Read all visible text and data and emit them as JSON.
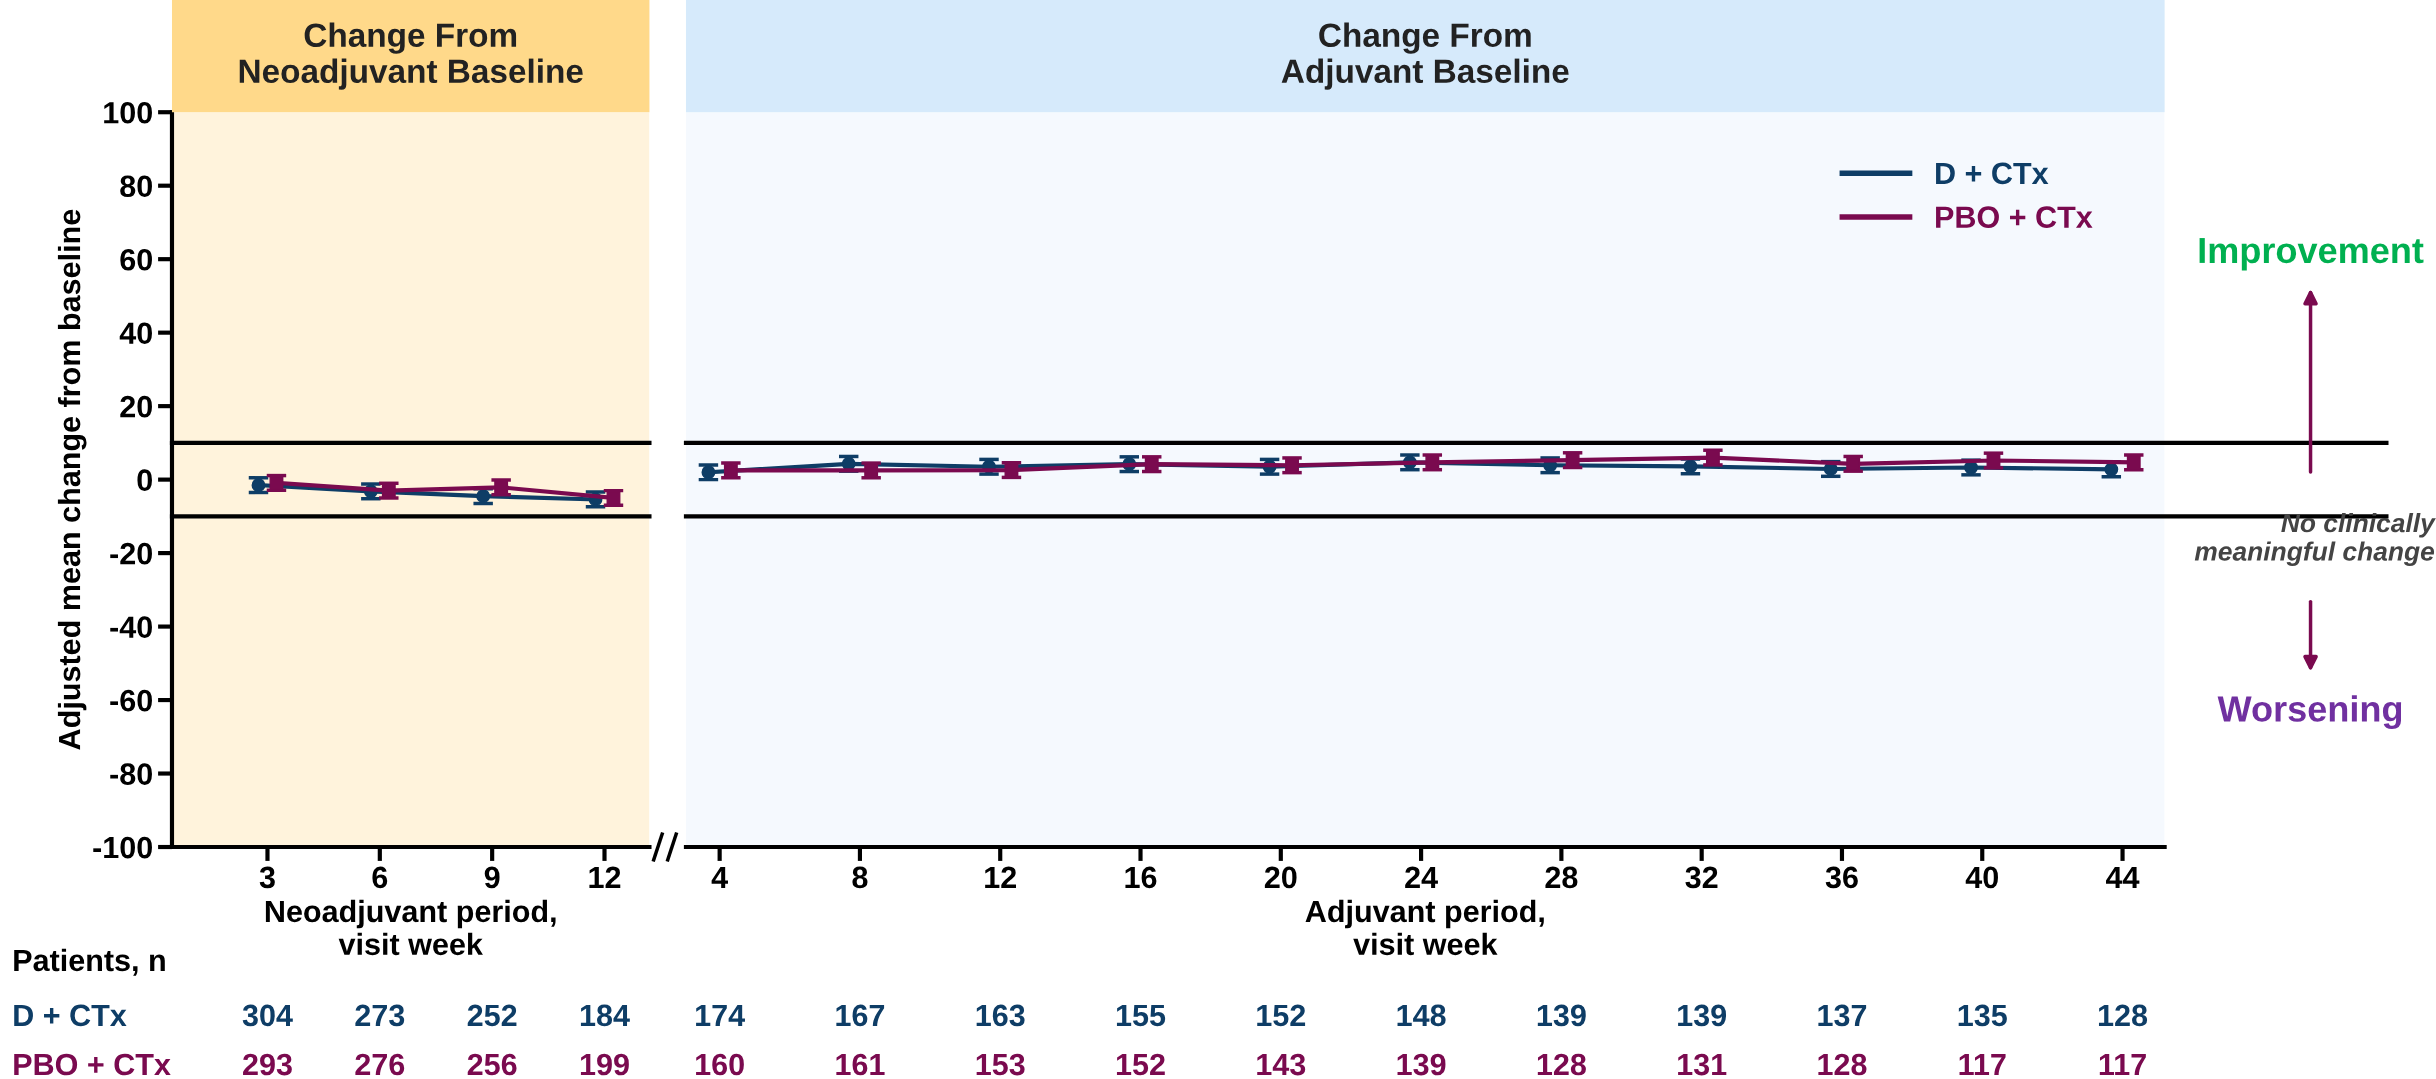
{
  "chart_data": [
    {
      "type": "line",
      "title": "Change From\nNeoadjuvant Baseline",
      "xlabel": "Neoadjuvant period,\nvisit week",
      "ylabel": "Adjusted mean change from baseline",
      "categories": [
        "3",
        "6",
        "9",
        "12"
      ],
      "series": [
        {
          "name": "D + CTx",
          "color": "#0e3d66",
          "marker": "circle",
          "values": [
            -1.5,
            -3.2,
            -4.5,
            -5.4
          ],
          "errors": [
            2,
            2,
            2,
            2
          ]
        },
        {
          "name": "PBO + CTx",
          "color": "#7a0a4f",
          "marker": "square",
          "values": [
            -0.9,
            -3.0,
            -2.1,
            -5.0
          ],
          "errors": [
            2,
            2,
            2,
            2
          ]
        }
      ],
      "ylim": [
        -100,
        100
      ],
      "yticks": [
        -100,
        -80,
        -60,
        -40,
        -20,
        0,
        20,
        40,
        60,
        80,
        100
      ],
      "ref_lines": [
        {
          "axis": "y",
          "value": 10,
          "label": null,
          "color": "#000000"
        },
        {
          "axis": "y",
          "value": -10,
          "label": null,
          "color": "#000000"
        }
      ],
      "bands": [
        {
          "axis": "y",
          "from": -100,
          "to": 100,
          "label": null,
          "color": "#fff3dc"
        }
      ],
      "annotations": [
        "Patients, n",
        "304",
        "273",
        "252",
        "184",
        "293",
        "276",
        "256",
        "199"
      ],
      "legend": "bottom left",
      "grid": false
    },
    {
      "type": "line",
      "title": "Change From\nAdjuvant Baseline",
      "xlabel": "Adjuvant period,\nvisit week",
      "categories": [
        "4",
        "8",
        "12",
        "16",
        "20",
        "24",
        "28",
        "32",
        "36",
        "40",
        "44"
      ],
      "series": [
        {
          "name": "D + CTx",
          "color": "#0e3d66",
          "marker": "circle",
          "values": [
            2.0,
            4.3,
            3.5,
            4.2,
            3.5,
            4.7,
            3.9,
            3.6,
            2.9,
            3.3,
            2.8
          ],
          "errors": [
            2,
            2,
            2,
            2,
            2,
            2,
            2,
            2,
            2,
            2,
            2
          ]
        },
        {
          "name": "PBO + CTx",
          "color": "#7a0a4f",
          "marker": "square",
          "values": [
            2.5,
            2.5,
            2.6,
            4.2,
            3.9,
            4.7,
            5.3,
            6.0,
            4.3,
            5.2,
            4.7
          ],
          "errors": [
            2,
            2,
            2,
            2,
            2,
            2,
            2,
            2,
            2,
            2,
            2
          ]
        }
      ],
      "ylim": [
        -100,
        100
      ],
      "tick_labels": "x",
      "ref_lines": [
        {
          "axis": "y",
          "value": 10,
          "label": null,
          "color": "#000000"
        },
        {
          "axis": "y",
          "value": -10,
          "label": null,
          "color": "#000000"
        }
      ],
      "bands": [
        {
          "axis": "y",
          "from": -100,
          "to": 100,
          "label": null,
          "color": "#f5f9fe"
        }
      ],
      "annotations": [
        "Improvement",
        "No clinically\nmeaningful change",
        "Worsening",
        "174",
        "167",
        "163",
        "155",
        "152",
        "148",
        "139",
        "139",
        "137",
        "135",
        "128",
        "160",
        "161",
        "153",
        "152",
        "143",
        "139",
        "128",
        "131",
        "128",
        "117",
        "117"
      ],
      "legend": "top right",
      "grid": false
    }
  ]
}
